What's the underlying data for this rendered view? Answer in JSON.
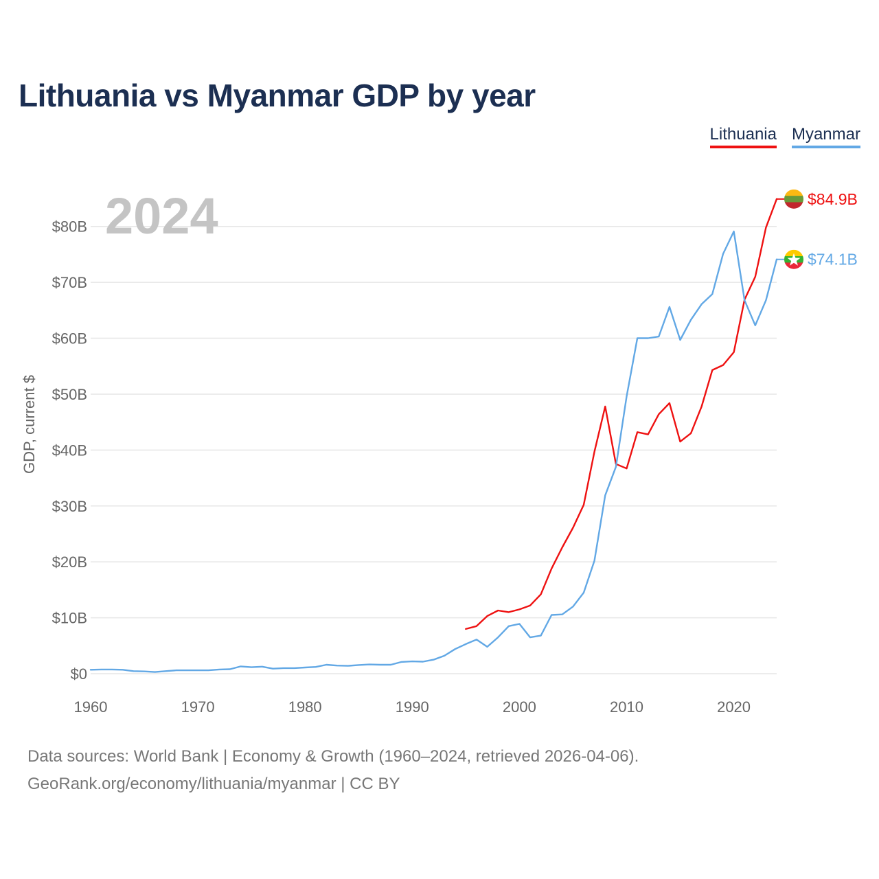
{
  "title": "Lithuania vs Myanmar GDP by year",
  "legend": [
    {
      "label": "Lithuania",
      "color": "#ee1111"
    },
    {
      "label": "Myanmar",
      "color": "#62a8e5"
    }
  ],
  "footer": {
    "line1": "Data sources: World Bank | Economy & Growth (1960–2024, retrieved 2026-04-06).",
    "line2": "GeoRank.org/economy/lithuania/myanmar | CC BY"
  },
  "chart_data": {
    "type": "line",
    "year_label": "2024",
    "ylabel": "GDP, current $",
    "xlim": [
      1960,
      2024
    ],
    "ylim": [
      0,
      85
    ],
    "x_ticks": [
      1960,
      1970,
      1980,
      1990,
      2000,
      2010,
      2020
    ],
    "x_tick_labels": [
      "1960",
      "1970",
      "1980",
      "1990",
      "2000",
      "2010",
      "2020"
    ],
    "y_ticks": [
      0,
      10,
      20,
      30,
      40,
      50,
      60,
      70,
      80
    ],
    "y_tick_labels": [
      "$0",
      "$10B",
      "$20B",
      "$30B",
      "$40B",
      "$50B",
      "$60B",
      "$70B",
      "$80B"
    ],
    "grid": true,
    "series": [
      {
        "name": "Lithuania",
        "color": "#ee1111",
        "end_label": "$84.9B",
        "flag": "lithuania",
        "flag_colors": [
          "#fdb913",
          "#6a9a3a",
          "#c1272d"
        ],
        "x": [
          1995,
          1996,
          1997,
          1998,
          1999,
          2000,
          2001,
          2002,
          2003,
          2004,
          2005,
          2006,
          2007,
          2008,
          2009,
          2010,
          2011,
          2012,
          2013,
          2014,
          2015,
          2016,
          2017,
          2018,
          2019,
          2020,
          2021,
          2022,
          2023,
          2024
        ],
        "values": [
          8.0,
          8.5,
          10.3,
          11.3,
          11.0,
          11.5,
          12.2,
          14.2,
          18.8,
          22.6,
          26.1,
          30.2,
          39.7,
          47.8,
          37.5,
          36.7,
          43.2,
          42.8,
          46.4,
          48.4,
          41.5,
          43.0,
          47.8,
          54.3,
          55.2,
          57.5,
          66.9,
          71.0,
          79.8,
          84.9
        ]
      },
      {
        "name": "Myanmar",
        "color": "#62a8e5",
        "end_label": "$74.1B",
        "flag": "myanmar",
        "flag_colors": [
          "#fecb00",
          "#34b233",
          "#ea2839"
        ],
        "x": [
          1960,
          1961,
          1962,
          1963,
          1964,
          1965,
          1966,
          1967,
          1968,
          1969,
          1970,
          1971,
          1972,
          1973,
          1974,
          1975,
          1976,
          1977,
          1978,
          1979,
          1980,
          1981,
          1982,
          1983,
          1984,
          1985,
          1986,
          1987,
          1988,
          1989,
          1990,
          1991,
          1992,
          1993,
          1994,
          1995,
          1996,
          1997,
          1998,
          1999,
          2000,
          2001,
          2002,
          2003,
          2004,
          2005,
          2006,
          2007,
          2008,
          2009,
          2010,
          2011,
          2012,
          2013,
          2014,
          2015,
          2016,
          2017,
          2018,
          2019,
          2020,
          2021,
          2022,
          2023,
          2024
        ],
        "values": [
          0.7,
          0.75,
          0.75,
          0.7,
          0.45,
          0.4,
          0.3,
          0.45,
          0.6,
          0.6,
          0.6,
          0.6,
          0.75,
          0.8,
          1.3,
          1.15,
          1.25,
          0.9,
          1.0,
          1.0,
          1.1,
          1.2,
          1.6,
          1.45,
          1.4,
          1.55,
          1.65,
          1.6,
          1.6,
          2.1,
          2.2,
          2.15,
          2.5,
          3.2,
          4.4,
          5.3,
          6.1,
          4.8,
          6.5,
          8.5,
          8.9,
          6.5,
          6.8,
          10.5,
          10.6,
          12.0,
          14.5,
          20.2,
          31.9,
          37.0,
          49.6,
          60.0,
          60.0,
          60.3,
          65.6,
          59.7,
          63.3,
          66.1,
          67.9,
          75.1,
          79.1,
          66.8,
          62.3,
          66.8,
          74.1
        ]
      }
    ]
  }
}
